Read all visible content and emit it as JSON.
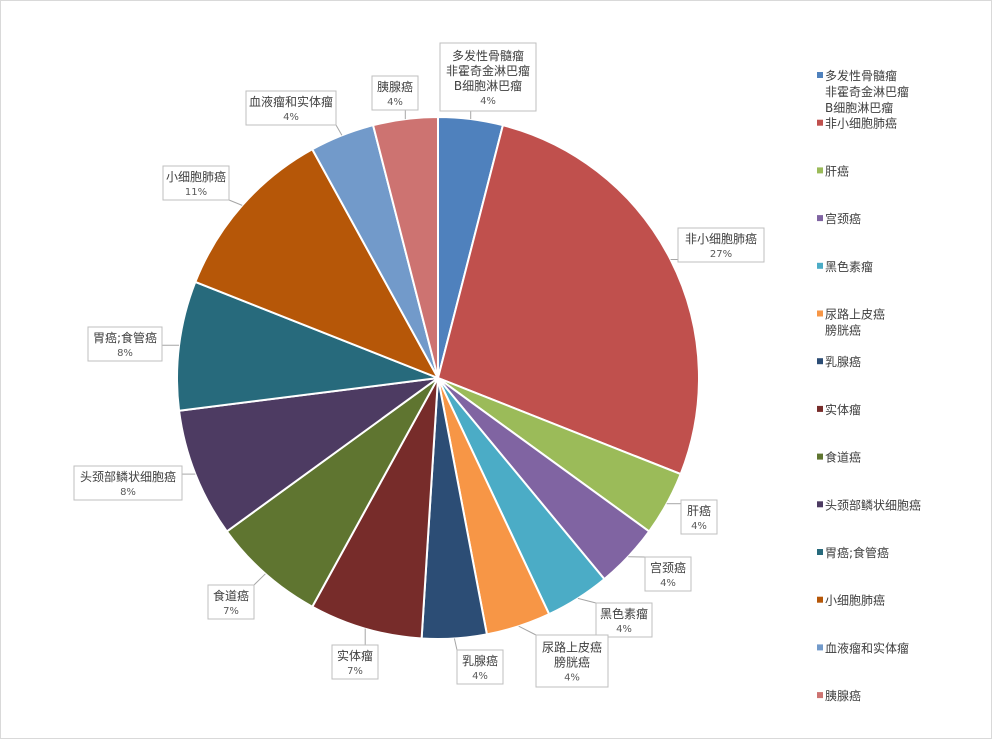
{
  "chart_data": {
    "type": "pie",
    "title": "",
    "slices": [
      {
        "lines": [
          "多发性骨髓瘤",
          "非霍奇金淋巴瘤",
          "B细胞淋巴瘤"
        ],
        "value": 4,
        "pct_label": "4%",
        "color": "#4f81bd"
      },
      {
        "lines": [
          "非小细胞肺癌"
        ],
        "value": 27,
        "pct_label": "27%",
        "color": "#c0504d"
      },
      {
        "lines": [
          "肝癌"
        ],
        "value": 4,
        "pct_label": "4%",
        "color": "#9bbb59"
      },
      {
        "lines": [
          "宫颈癌"
        ],
        "value": 4,
        "pct_label": "4%",
        "color": "#8064a2"
      },
      {
        "lines": [
          "黑色素瘤"
        ],
        "value": 4,
        "pct_label": "4%",
        "color": "#4bacc6"
      },
      {
        "lines": [
          "尿路上皮癌",
          "膀胱癌"
        ],
        "value": 4,
        "pct_label": "4%",
        "color": "#f79646"
      },
      {
        "lines": [
          "乳腺癌"
        ],
        "value": 4,
        "pct_label": "4%",
        "color": "#2c4d75"
      },
      {
        "lines": [
          "实体瘤"
        ],
        "value": 7,
        "pct_label": "7%",
        "color": "#772c2a"
      },
      {
        "lines": [
          "食道癌"
        ],
        "value": 7,
        "pct_label": "7%",
        "color": "#5f7530"
      },
      {
        "lines": [
          "头颈部鳞状细胞癌"
        ],
        "value": 8,
        "pct_label": "8%",
        "color": "#4d3b62"
      },
      {
        "lines": [
          "胃癌;食管癌"
        ],
        "value": 8,
        "pct_label": "8%",
        "color": "#276a7c"
      },
      {
        "lines": [
          "小细胞肺癌"
        ],
        "value": 11,
        "pct_label": "11%",
        "color": "#b65708"
      },
      {
        "lines": [
          "血液瘤和实体瘤"
        ],
        "value": 4,
        "pct_label": "4%",
        "color": "#729aca"
      },
      {
        "lines": [
          "胰腺癌"
        ],
        "value": 4,
        "pct_label": "4%",
        "color": "#cd7371"
      }
    ],
    "legend_position": "right",
    "data_labels": "category name and percentage"
  }
}
